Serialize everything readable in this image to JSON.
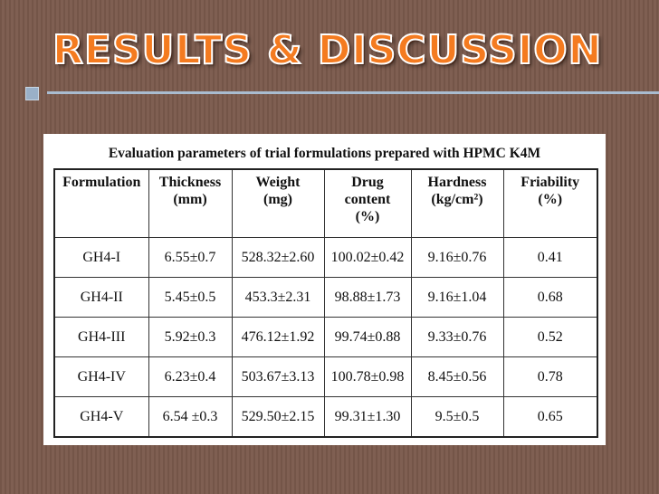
{
  "slide": {
    "title": "RESULTS & DISCUSSION",
    "caption": "Evaluation parameters of trial formulations prepared with HPMC K4M"
  },
  "table": {
    "headers": [
      [
        "Formulation"
      ],
      [
        "Thickness",
        "(mm)"
      ],
      [
        "Weight",
        "(mg)"
      ],
      [
        "Drug",
        "content",
        "(%)"
      ],
      [
        "Hardness",
        "(kg/cm²)"
      ],
      [
        "Friability",
        "(%)"
      ]
    ],
    "rows": [
      [
        "GH4-I",
        "6.55±0.7",
        "528.32±2.60",
        "100.02±0.42",
        "9.16±0.76",
        "0.41"
      ],
      [
        "GH4-II",
        "5.45±0.5",
        "453.3±2.31",
        "98.88±1.73",
        "9.16±1.04",
        "0.68"
      ],
      [
        "GH4-III",
        "5.92±0.3",
        "476.12±1.92",
        "99.74±0.88",
        "9.33±0.76",
        "0.52"
      ],
      [
        "GH4-IV",
        "6.23±0.4",
        "503.67±3.13",
        "100.78±0.98",
        "8.45±0.56",
        "0.78"
      ],
      [
        "GH4-V",
        "6.54 ±0.3",
        "529.50±2.15",
        "99.31±1.30",
        "9.5±0.5",
        "0.65"
      ]
    ]
  },
  "colors": {
    "background": "#7b5a4c",
    "title": "#f47b20",
    "accent_line": "#a9bcd0"
  }
}
